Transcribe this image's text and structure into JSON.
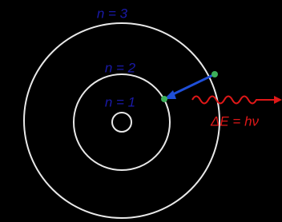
{
  "levels": [
    "n = 1",
    "n = 2",
    "n = 3"
  ],
  "equation": "ΔE = hν"
}
